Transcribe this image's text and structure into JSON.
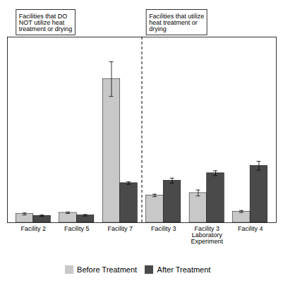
{
  "chart_data": {
    "type": "bar",
    "categories": [
      "Facility 2",
      "Facility 5",
      "Facility 7",
      "Facility 3",
      "Facility 3\nLaboratory\nExperiment",
      "Facility 4"
    ],
    "series": [
      {
        "name": "Before Treatment",
        "color": "#c8c8c8",
        "values": [
          0.35,
          0.4,
          5.8,
          1.1,
          1.2,
          0.45
        ],
        "errors": [
          0.04,
          0.03,
          0.7,
          0.05,
          0.12,
          0.04
        ]
      },
      {
        "name": "After Treatment",
        "color": "#4a4a4a",
        "values": [
          0.28,
          0.3,
          1.6,
          1.7,
          2.0,
          2.3
        ],
        "errors": [
          0.03,
          0.03,
          0.05,
          0.1,
          0.1,
          0.18
        ]
      }
    ],
    "ylim": [
      0,
      7.5
    ],
    "tick_labels": "x",
    "annotations": [
      {
        "text": "Facilities that DO\nNOT utilize heat\ntreatment or drying",
        "categories": [
          "Facility 2",
          "Facility 5",
          "Facility 7"
        ]
      },
      {
        "text": "Facilities that utilize\nheat treatment or\ndrying",
        "categories": [
          "Facility 3",
          "Facility 3\nLaboratory\nExperiment",
          "Facility 4"
        ]
      }
    ],
    "legend": "bottom"
  }
}
